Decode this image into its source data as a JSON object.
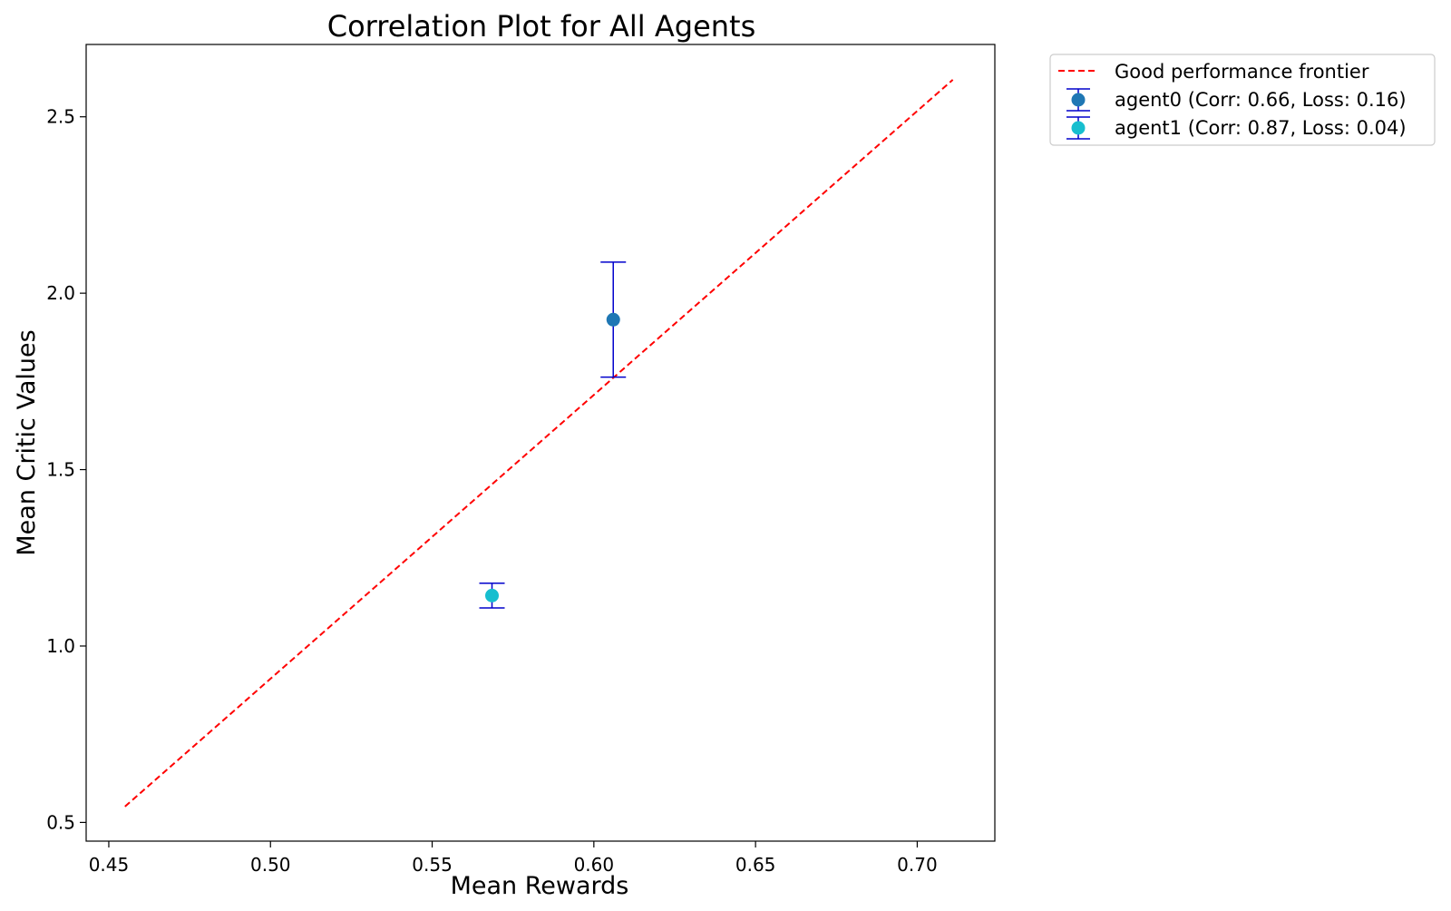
{
  "chart_data": {
    "type": "scatter",
    "title": "Correlation Plot for All Agents",
    "xlabel": "Mean Rewards",
    "ylabel": "Mean Critic Values",
    "xlim": [
      0.443,
      0.724
    ],
    "ylim": [
      0.447,
      2.705
    ],
    "xticks": [
      0.45,
      0.5,
      0.55,
      0.6,
      0.65,
      0.7
    ],
    "xtick_labels": [
      "0.45",
      "0.50",
      "0.55",
      "0.60",
      "0.65",
      "0.70"
    ],
    "yticks": [
      0.5,
      1.0,
      1.5,
      2.0,
      2.5
    ],
    "ytick_labels": [
      "0.5",
      "1.0",
      "1.5",
      "2.0",
      "2.5"
    ],
    "grid": false,
    "legend_position": "outside-top-right",
    "frontier": {
      "label": "Good performance frontier",
      "color": "#ff0000",
      "style": "dashed",
      "x": [
        0.455,
        0.711
      ],
      "y": [
        0.545,
        2.605
      ]
    },
    "series": [
      {
        "name": "agent0 (Corr: 0.66, Loss: 0.16)",
        "x": 0.606,
        "y": 1.925,
        "y_err_low": 1.762,
        "y_err_high": 2.088,
        "color": "#1f77b4"
      },
      {
        "name": "agent1 (Corr: 0.87, Loss: 0.04)",
        "x": 0.5685,
        "y": 1.143,
        "y_err_low": 1.108,
        "y_err_high": 1.178,
        "color": "#17becf"
      }
    ],
    "errorbar_color": "#0000cc"
  }
}
